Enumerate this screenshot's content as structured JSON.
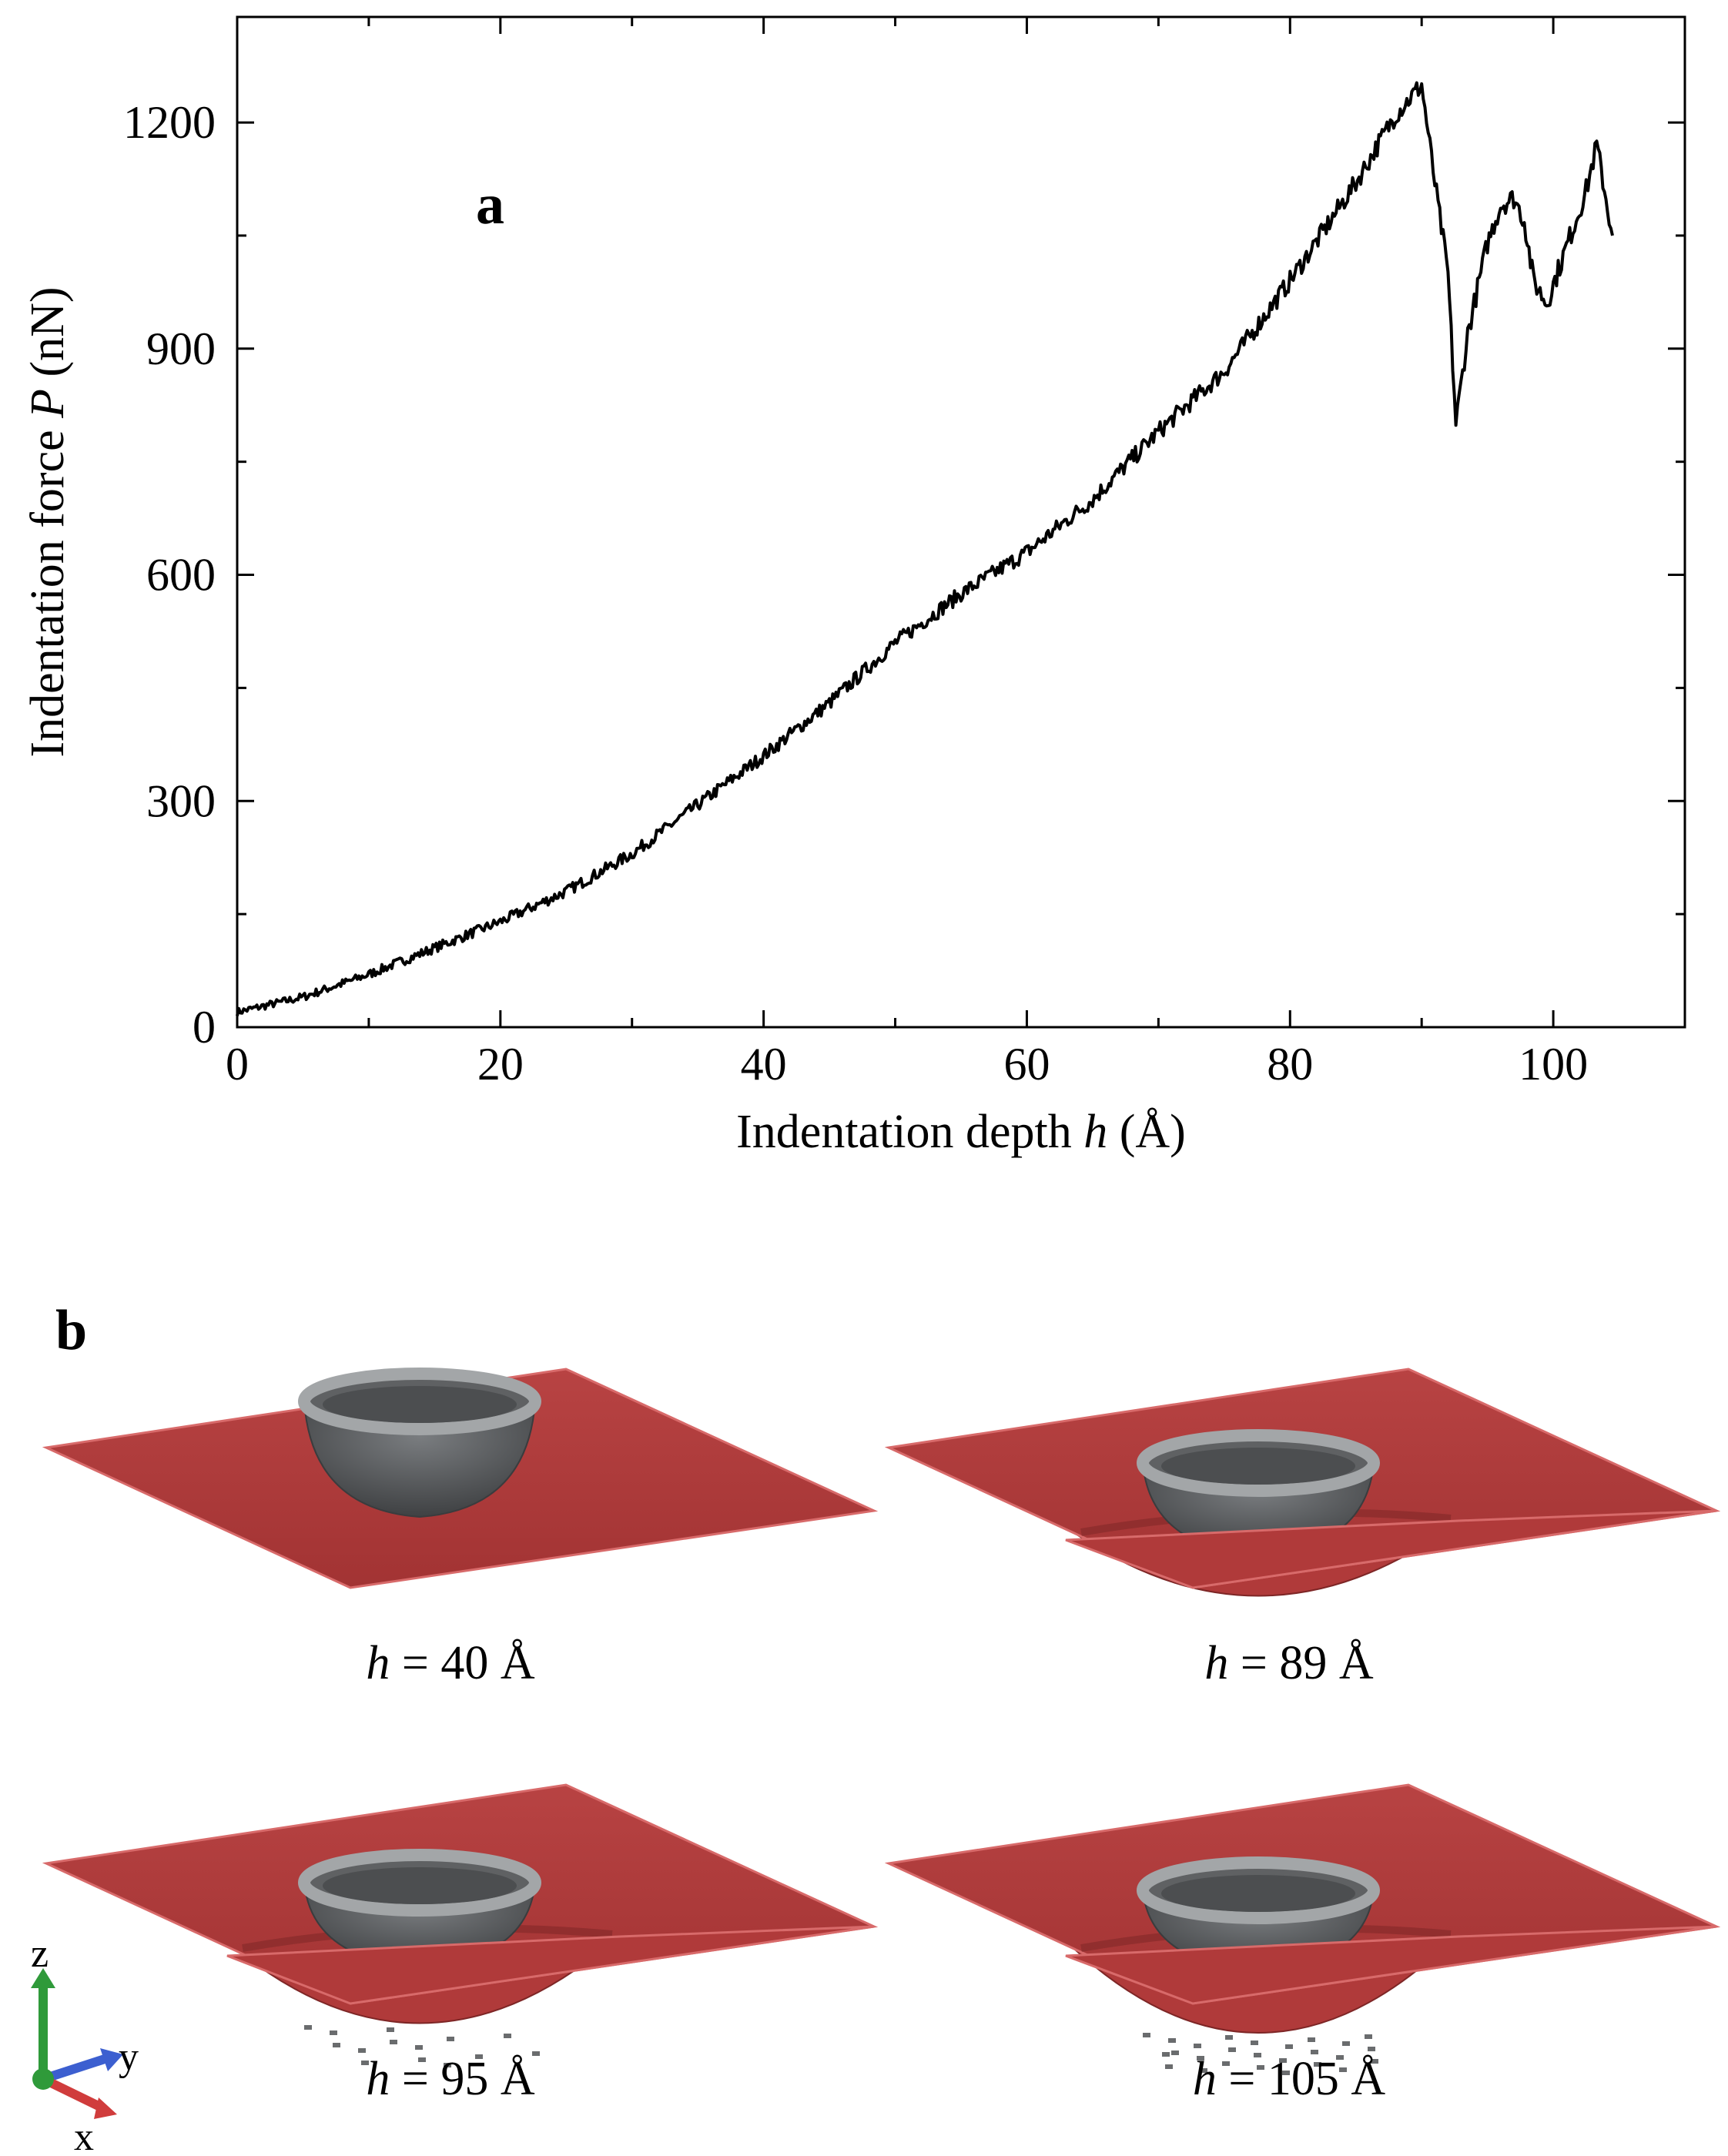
{
  "chart_data": {
    "type": "line",
    "panel_label": "a",
    "xlabel_main": "Indentation depth ",
    "xlabel_var": "h",
    "xlabel_unit": " (Å)",
    "ylabel_main": "Indentation force ",
    "ylabel_var": "P",
    "ylabel_unit": " (nN)",
    "xlim": [
      0,
      110
    ],
    "ylim": [
      0,
      1340
    ],
    "xticks": [
      0,
      20,
      40,
      60,
      80,
      100
    ],
    "yticks": [
      0,
      300,
      600,
      900,
      1200
    ],
    "xtick_labels": [
      "0",
      "20",
      "40",
      "60",
      "80",
      "100"
    ],
    "ytick_labels": [
      "0",
      "300",
      "600",
      "900",
      "1200"
    ],
    "grid": false,
    "series": [
      {
        "color": "#000000",
        "x": [
          0,
          5,
          10,
          15,
          20,
          25,
          30,
          35,
          40,
          45,
          50,
          55,
          60,
          65,
          70,
          75,
          80,
          85,
          88,
          90,
          91,
          92,
          92.6,
          93.5,
          95,
          96,
          97,
          97.8,
          98.5,
          99.5,
          100.5,
          101.5,
          102.5,
          103.3,
          104,
          104.5
        ],
        "y": [
          20,
          40,
          70,
          105,
          140,
          180,
          230,
          295,
          360,
          430,
          510,
          575,
          630,
          700,
          790,
          870,
          990,
          1120,
          1210,
          1250,
          1120,
          1000,
          800,
          920,
          1040,
          1090,
          1100,
          1070,
          990,
          960,
          1010,
          1060,
          1110,
          1170,
          1100,
          1050
        ]
      }
    ]
  },
  "panel_b": {
    "label": "b",
    "panels": [
      {
        "var": "h",
        "rest": " = 40 Å",
        "stage": 0
      },
      {
        "var": "h",
        "rest": " = 89 Å",
        "stage": 1
      },
      {
        "var": "h",
        "rest": " = 95 Å",
        "stage": 2
      },
      {
        "var": "h",
        "rest": " = 105 Å",
        "stage": 3
      }
    ],
    "triad": {
      "z": "z",
      "y": "y",
      "x": "x"
    },
    "colors": {
      "membrane": "#b03a3a",
      "membrane_edge": "#d86a6a",
      "indenter": "#5f6163",
      "indenter_rim": "#a3a6a8",
      "axis_z": "#2f9a3a",
      "axis_y": "#3c5fd0",
      "axis_x": "#d03c3c"
    }
  }
}
